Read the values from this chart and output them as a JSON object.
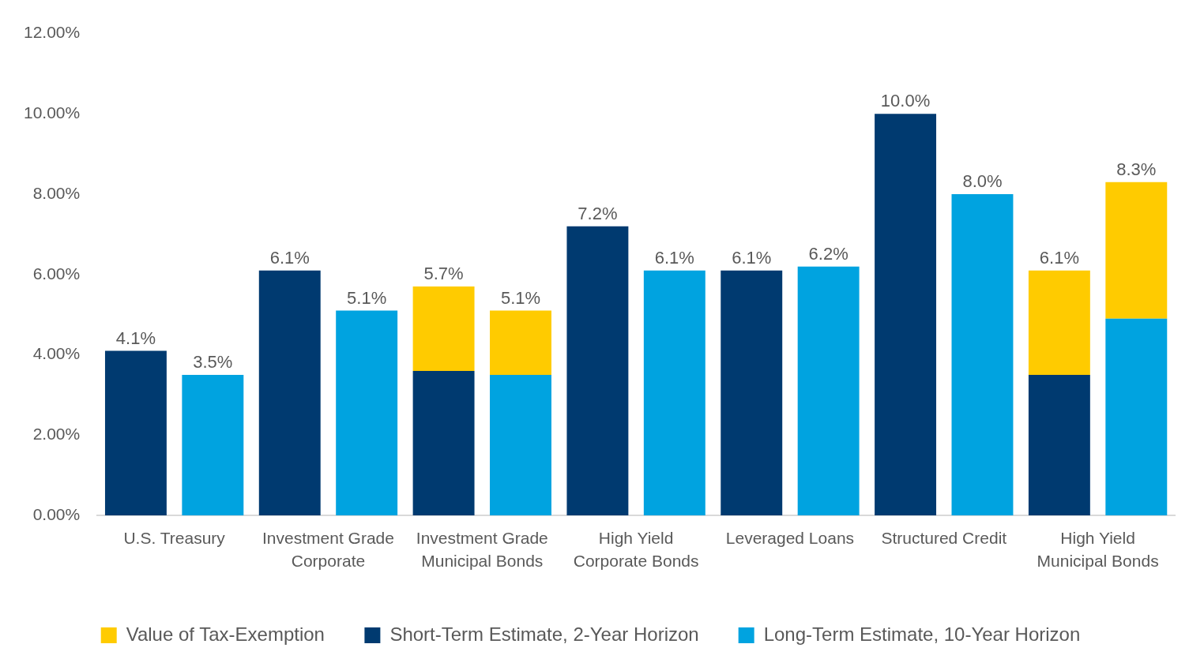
{
  "chart_data": {
    "type": "bar",
    "stacked": true,
    "categories": [
      "U.S. Treasury",
      null,
      "Investment Grade Corporate",
      null,
      "Investment Grade Municipal Bonds",
      null,
      "High Yield Corporate Bonds",
      null,
      "Leveraged Loans",
      null,
      "Structured Credit",
      null,
      "High Yield Municipal Bonds",
      null
    ],
    "series": [
      {
        "name": "Short-Term Estimate, 2-Year Horizon",
        "color": "#003a70",
        "values": [
          4.1,
          null,
          6.1,
          null,
          3.6,
          null,
          7.2,
          null,
          6.1,
          null,
          10.0,
          null,
          3.5,
          null
        ]
      },
      {
        "name": "Long-Term Estimate, 10-Year Horizon",
        "color": "#00a3e0",
        "values": [
          null,
          3.5,
          null,
          5.1,
          null,
          3.5,
          null,
          6.1,
          null,
          6.2,
          null,
          8.0,
          null,
          4.9
        ]
      },
      {
        "name": "Value of Tax-Exemption",
        "color": "#ffcb00",
        "values": [
          null,
          null,
          null,
          null,
          2.1,
          1.6,
          null,
          null,
          null,
          null,
          null,
          null,
          2.6,
          3.4
        ]
      }
    ],
    "totals": [
      "4.1%",
      "3.5%",
      "6.1%",
      "5.1%",
      "5.7%",
      "5.1%",
      "7.2%",
      "6.1%",
      "6.1%",
      "6.2%",
      "10.0%",
      "8.0%",
      "6.1%",
      "8.3%"
    ],
    "ylim": [
      0,
      12
    ],
    "yticks": [
      {
        "value": 0,
        "label": "0.00%"
      },
      {
        "value": 2,
        "label": "2.00%"
      },
      {
        "value": 4,
        "label": "4.00%"
      },
      {
        "value": 6,
        "label": "6.00%"
      },
      {
        "value": 8,
        "label": "8.00%"
      },
      {
        "value": 10,
        "label": "10.00%"
      },
      {
        "value": 12,
        "label": "12.00%"
      }
    ],
    "grid": false,
    "legend": "bottom"
  }
}
